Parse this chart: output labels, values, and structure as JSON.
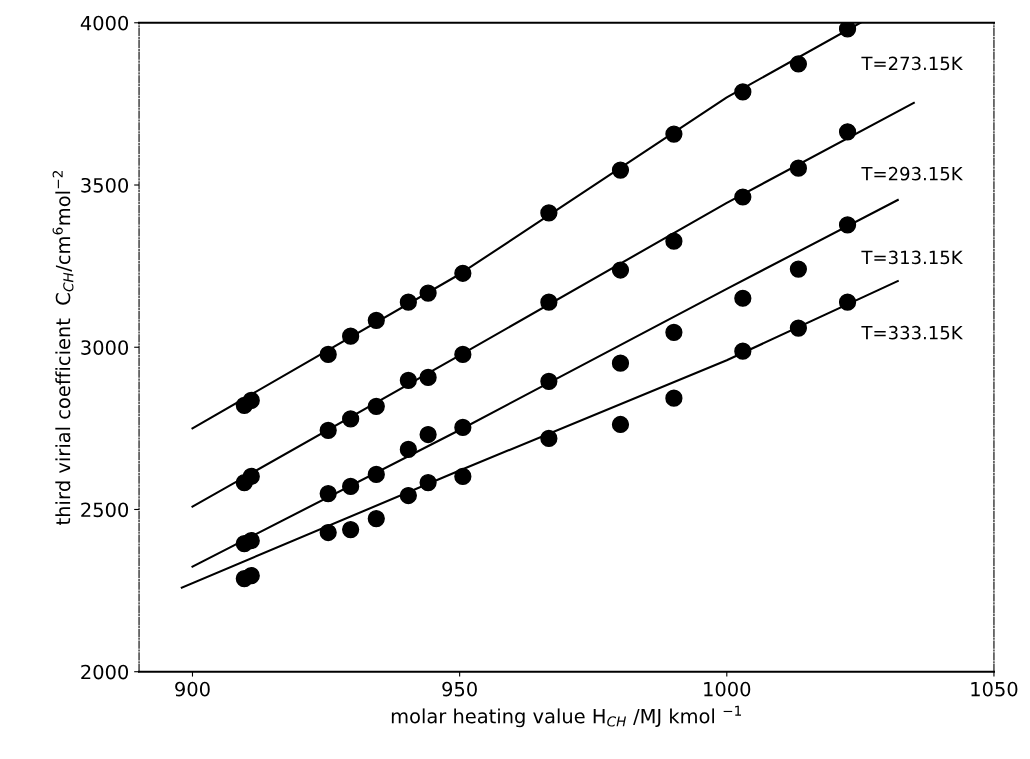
{
  "chart_data": {
    "type": "scatter",
    "xlabel": "molar heating value H$_{CH}$ /MJ kmol $^{−1}$",
    "ylabel": "third virial coefficient  C$_{CH}$/cm$^{6}$mol$^{−2}$",
    "x": [
      909.7,
      911,
      925.4,
      929.6,
      934.4,
      940.4,
      944.1,
      950.6,
      966.7,
      980.1,
      990.1,
      1003,
      1013.4,
      1022.6
    ],
    "series": [
      {
        "color": "#000000",
        "values": [
          2821,
          2836,
          2978,
          3034,
          3083,
          3139,
          3167,
          3228,
          3414,
          3546,
          3657,
          3787,
          3873,
          3981
        ]
      },
      {
        "color": "#000000",
        "values": [
          2583,
          2602,
          2744,
          2779,
          2818,
          2898,
          2907,
          2978,
          3139,
          3238,
          3327,
          3463,
          3552,
          3664
        ]
      },
      {
        "color": "#000000",
        "values": [
          2395,
          2404,
          2549,
          2571,
          2608,
          2685,
          2731,
          2753,
          2895,
          2951,
          3046,
          3151,
          3241,
          3377
        ]
      },
      {
        "color": "#000000",
        "values": [
          2287,
          2296,
          2429,
          2438,
          2472,
          2543,
          2583,
          2602,
          2719,
          2762,
          2843,
          2988,
          3059,
          3139
        ]
      },
      {
        "type": "line",
        "marker": "none",
        "color": "#000000",
        "x": [
          900,
          950,
          1000,
          1025
        ],
        "values": [
          2750,
          3225,
          3770,
          4000
        ]
      },
      {
        "type": "line",
        "marker": "none",
        "color": "#000000",
        "x": [
          900,
          950,
          1000,
          1035
        ],
        "values": [
          2509,
          2975,
          3445,
          3753
        ]
      },
      {
        "type": "line",
        "marker": "none",
        "color": "#000000",
        "x": [
          900,
          950,
          1000,
          1032
        ],
        "values": [
          2324,
          2745,
          3180,
          3454
        ]
      },
      {
        "type": "line",
        "marker": "none",
        "color": "#000000",
        "x": [
          898,
          950,
          1000,
          1032
        ],
        "values": [
          2259,
          2620,
          2960,
          3204
        ]
      }
    ],
    "annotations": [
      "T=273.15K",
      "T=293.15K",
      "T=313.15K",
      "T=333.15K"
    ],
    "xlim": [
      890,
      1050
    ],
    "xticks": [
      900,
      950,
      1000,
      1050
    ],
    "ylim": [
      2000,
      4000
    ],
    "yticks": [
      2000,
      2500,
      3000,
      3500,
      4000
    ],
    "marker": "circle",
    "line_style": "solid",
    "grid": false,
    "legend": false
  }
}
